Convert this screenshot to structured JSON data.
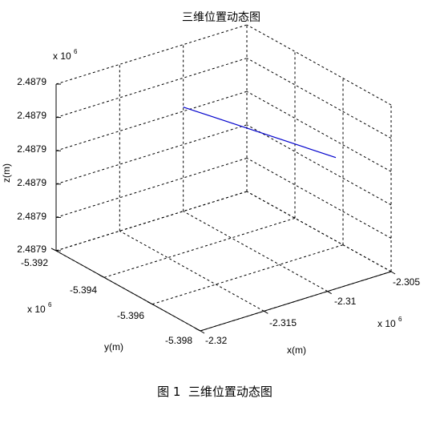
{
  "chart_data": {
    "type": "line",
    "title": "三维位置动态图",
    "caption": "图 1  三维位置动态图",
    "xlabel": "x(m)",
    "ylabel": "y(m)",
    "zlabel": "z(m)",
    "x_ticks": [
      "-2.32",
      "-2.315",
      "-2.31",
      "-2.305"
    ],
    "y_ticks": [
      "-5.392",
      "-5.394",
      "-5.396",
      "-5.398"
    ],
    "z_ticks": [
      "2.4879",
      "2.4879",
      "2.4879",
      "2.4879",
      "2.4879",
      "2.4879"
    ],
    "x_multiplier": {
      "base": "x 10",
      "exp": "6"
    },
    "y_multiplier": {
      "base": "x 10",
      "exp": "6"
    },
    "z_multiplier": {
      "base": "x 10",
      "exp": "6"
    },
    "series": [
      {
        "color": "#0000cc",
        "points": [
          {
            "x": -2.31,
            "y": -5.392,
            "z": 2.48792
          },
          {
            "x": -2.305,
            "y": -5.3957,
            "z": 2.48791
          }
        ]
      }
    ],
    "grid": true
  }
}
